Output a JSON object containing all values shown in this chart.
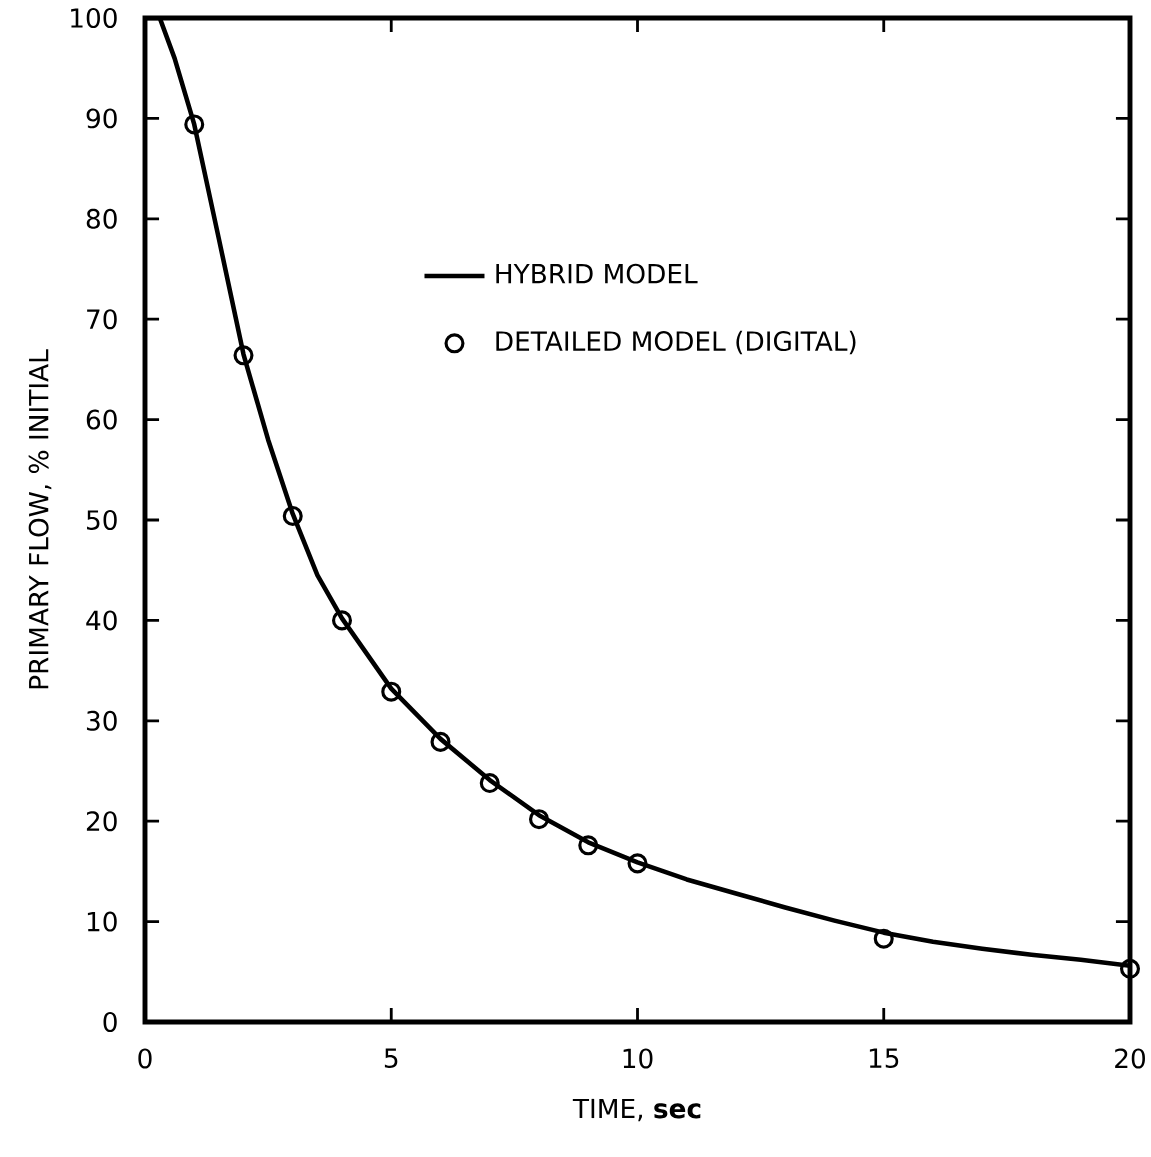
{
  "chart_data": {
    "type": "line",
    "xlabel": "TIME, **sec**",
    "ylabel": "PRIMARY FLOW, % INITIAL",
    "xlim": [
      0,
      20
    ],
    "ylim": [
      0,
      100
    ],
    "xticks": [
      0,
      5,
      10,
      15,
      20
    ],
    "yticks": [
      0,
      10,
      20,
      30,
      40,
      50,
      60,
      70,
      80,
      90,
      100
    ],
    "legend": "top right",
    "series": [
      {
        "name": "HYBRID MODEL",
        "color": "#000000",
        "marker": "none",
        "x": [
          0,
          0.3,
          0.6,
          1,
          1.5,
          2,
          2.5,
          3,
          3.5,
          4,
          5,
          6,
          7,
          8,
          9,
          10,
          11,
          12,
          13,
          14,
          15,
          16,
          17,
          18,
          19,
          20
        ],
        "values": [
          100,
          100,
          96,
          89.4,
          78,
          66.5,
          58,
          50.6,
          44.5,
          40.2,
          33.2,
          28.2,
          24.1,
          20.6,
          17.9,
          15.9,
          14.2,
          12.8,
          11.4,
          10.1,
          8.9,
          8.0,
          7.3,
          6.7,
          6.2,
          5.6
        ]
      },
      {
        "name": "DETAILED MODEL (DIGITAL)",
        "type": "scatter",
        "color": "#000000",
        "marker": "circle",
        "x": [
          1,
          2,
          3,
          4,
          5,
          6,
          7,
          8,
          9,
          10,
          15,
          20
        ],
        "values": [
          89.4,
          66.4,
          50.4,
          40.0,
          32.9,
          27.9,
          23.8,
          20.2,
          17.6,
          15.8,
          8.3,
          5.3
        ]
      }
    ]
  }
}
